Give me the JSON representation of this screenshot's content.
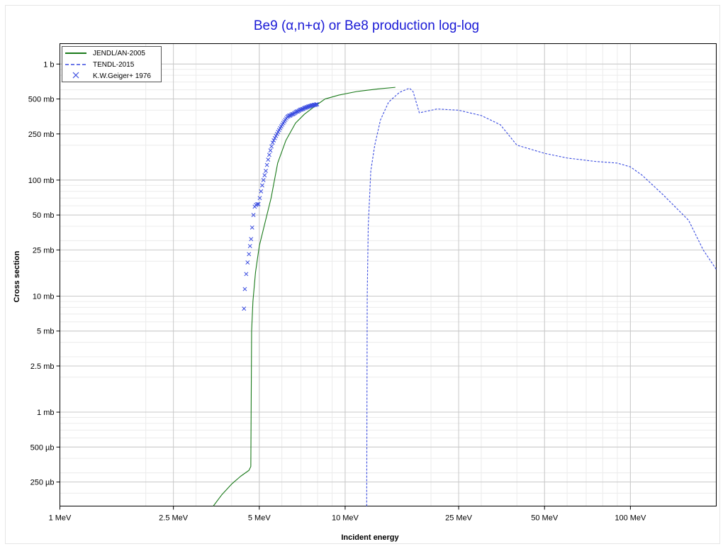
{
  "chart_data": {
    "type": "line",
    "title": "Be9 (α,n+α) or Be8 production log-log",
    "xlabel": "Incident energy",
    "ylabel": "Cross section",
    "x_scale": "log",
    "y_scale": "log",
    "x_unit": "MeV",
    "y_unit": "b",
    "xlim": [
      1,
      200
    ],
    "ylim": [
      0.000155,
      1.5
    ],
    "grid": true,
    "legend_position": "top-left",
    "x_ticks": [
      {
        "value": 1,
        "label": "1 MeV"
      },
      {
        "value": 2.5,
        "label": "2.5 MeV"
      },
      {
        "value": 5,
        "label": "5 MeV"
      },
      {
        "value": 10,
        "label": "10 MeV"
      },
      {
        "value": 25,
        "label": "25 MeV"
      },
      {
        "value": 50,
        "label": "50 MeV"
      },
      {
        "value": 100,
        "label": "100 MeV"
      }
    ],
    "y_ticks": [
      {
        "value": 1,
        "label": "1 b"
      },
      {
        "value": 0.5,
        "label": "500 mb"
      },
      {
        "value": 0.25,
        "label": "250 mb"
      },
      {
        "value": 0.1,
        "label": "100 mb"
      },
      {
        "value": 0.05,
        "label": "50 mb"
      },
      {
        "value": 0.025,
        "label": "25 mb"
      },
      {
        "value": 0.01,
        "label": "10 mb"
      },
      {
        "value": 0.005,
        "label": "5 mb"
      },
      {
        "value": 0.0025,
        "label": "2.5 mb"
      },
      {
        "value": 0.001,
        "label": "1 mb"
      },
      {
        "value": 0.0005,
        "label": "500 µb"
      },
      {
        "value": 0.00025,
        "label": "250 µb"
      }
    ],
    "series": [
      {
        "name": "JENDL/AN-2005",
        "style": "solid",
        "color": "#1a7a1a",
        "x": [
          3.45,
          3.7,
          4.0,
          4.3,
          4.6,
          4.67,
          4.7,
          4.75,
          4.85,
          5.0,
          5.2,
          5.5,
          5.8,
          6.2,
          6.7,
          7.2,
          7.8,
          8.5,
          9.5,
          11.0,
          13.0,
          15.0
        ],
        "y": [
          0.000155,
          0.000195,
          0.00024,
          0.00028,
          0.000315,
          0.00034,
          0.005,
          0.009,
          0.016,
          0.027,
          0.04,
          0.07,
          0.14,
          0.22,
          0.31,
          0.37,
          0.43,
          0.5,
          0.54,
          0.58,
          0.61,
          0.63
        ]
      },
      {
        "name": "TENDL-2015",
        "style": "dashed",
        "color": "#3a4ce0",
        "x": [
          11.9,
          11.95,
          12.05,
          12.3,
          12.7,
          13.3,
          14.2,
          15.5,
          16.8,
          17.3,
          18.2,
          21.0,
          25.0,
          30.0,
          35.0,
          40.0,
          50.0,
          60.0,
          75.0,
          90.0,
          100.0,
          110.0,
          130.0,
          160.0,
          180.0,
          200.0
        ],
        "y": [
          0.000155,
          0.01,
          0.04,
          0.12,
          0.2,
          0.33,
          0.47,
          0.57,
          0.62,
          0.58,
          0.38,
          0.41,
          0.4,
          0.36,
          0.3,
          0.2,
          0.17,
          0.155,
          0.145,
          0.14,
          0.13,
          0.11,
          0.075,
          0.045,
          0.025,
          0.017
        ]
      },
      {
        "name": "K.W.Geiger+ 1976",
        "style": "marker-x",
        "color": "#3a4ce0",
        "x": [
          4.42,
          4.45,
          4.5,
          4.55,
          4.6,
          4.64,
          4.68,
          4.72,
          4.77,
          4.82,
          4.87,
          4.92,
          4.97,
          5.02,
          5.07,
          5.12,
          5.17,
          5.22,
          5.27,
          5.32,
          5.37,
          5.42,
          5.47,
          5.52,
          5.57,
          5.62,
          5.67,
          5.72,
          5.77,
          5.82,
          5.87,
          5.92,
          5.97,
          6.02,
          6.07,
          6.12,
          6.17,
          6.22,
          6.27,
          6.32,
          6.37,
          6.42,
          6.47,
          6.52,
          6.57,
          6.62,
          6.67,
          6.72,
          6.77,
          6.82,
          6.87,
          6.92,
          6.97,
          7.02,
          7.07,
          7.12,
          7.17,
          7.22,
          7.27,
          7.32,
          7.37,
          7.42,
          7.47,
          7.52,
          7.57,
          7.62,
          7.67,
          7.72,
          7.77,
          7.82,
          7.87,
          7.92,
          7.97
        ],
        "y": [
          0.0078,
          0.0115,
          0.0155,
          0.0195,
          0.023,
          0.027,
          0.031,
          0.039,
          0.05,
          0.059,
          0.061,
          0.062,
          0.062,
          0.07,
          0.08,
          0.09,
          0.1,
          0.11,
          0.12,
          0.135,
          0.15,
          0.165,
          0.18,
          0.195,
          0.21,
          0.22,
          0.23,
          0.24,
          0.25,
          0.26,
          0.27,
          0.28,
          0.29,
          0.3,
          0.31,
          0.32,
          0.33,
          0.34,
          0.35,
          0.355,
          0.36,
          0.36,
          0.365,
          0.37,
          0.37,
          0.375,
          0.38,
          0.385,
          0.39,
          0.39,
          0.395,
          0.4,
          0.405,
          0.405,
          0.41,
          0.41,
          0.415,
          0.42,
          0.42,
          0.425,
          0.425,
          0.43,
          0.43,
          0.435,
          0.435,
          0.44,
          0.44,
          0.44,
          0.445,
          0.445,
          0.445,
          0.45,
          0.45
        ]
      }
    ]
  }
}
